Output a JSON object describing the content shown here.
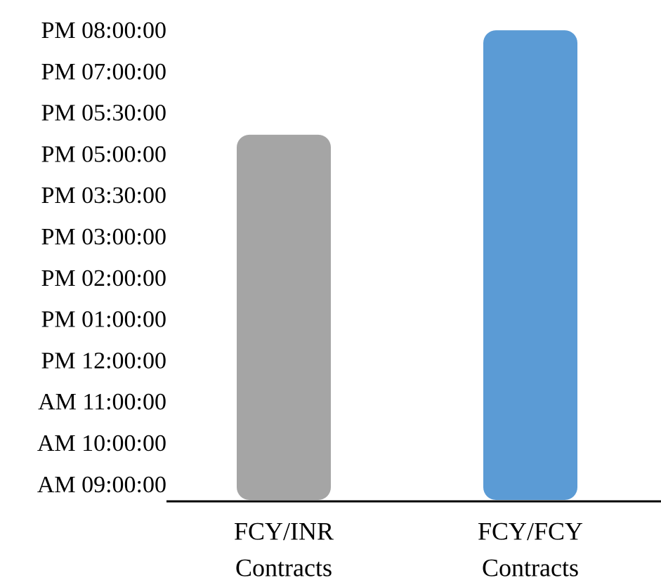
{
  "chart_data": {
    "type": "bar",
    "title": "",
    "xlabel": "",
    "ylabel": "",
    "categories": [
      "FCY/INR Contracts",
      "FCY/FCY Contracts"
    ],
    "category_label_lines": [
      [
        "FCY/INR",
        "Contracts"
      ],
      [
        "FCY/FCY",
        "Contracts"
      ]
    ],
    "values": [
      "PM 04:30:00",
      "PM 07:00:00"
    ],
    "y_ticks": [
      "AM 09:00:00",
      "AM 10:00:00",
      "AM 11:00:00",
      "PM 12:00:00",
      "PM 01:00:00",
      "PM 02:00:00",
      "PM 03:00:00",
      "PM 03:30:00",
      "PM 05:00:00",
      "PM 05:30:00",
      "PM 07:00:00",
      "PM 08:00:00"
    ],
    "bar_value_positions_in_tick_index": [
      8.42,
      10.95
    ],
    "colors": [
      "#a5a5a5",
      "#5b9bd5"
    ],
    "axis_color": "#000000",
    "grid": false,
    "legend": "none"
  }
}
